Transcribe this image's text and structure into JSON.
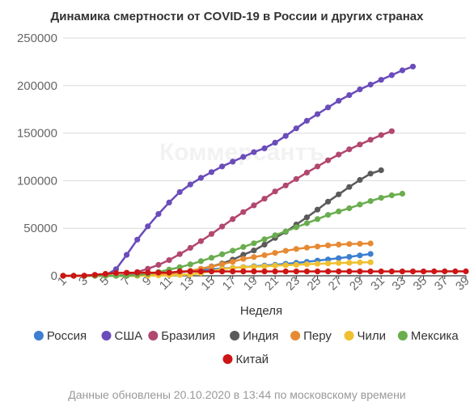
{
  "chart_data": {
    "type": "line",
    "title": "Динамика смертности от COVID-19 в России и других странах",
    "xlabel": "Неделя",
    "ylabel": "",
    "x_tick_labels": [
      "1",
      "3",
      "5",
      "7",
      "9",
      "11",
      "13",
      "15",
      "17",
      "19",
      "21",
      "23",
      "25",
      "27",
      "29",
      "31",
      "33",
      "35",
      "37",
      "39"
    ],
    "y_tick_labels": [
      "0",
      "50000",
      "100000",
      "150000",
      "200000",
      "250000"
    ],
    "xlim": [
      1,
      39
    ],
    "ylim": [
      0,
      250000
    ],
    "grid": true,
    "legend_position": "bottom",
    "watermark": "Коммерсантъ",
    "series": [
      {
        "name": "Россия",
        "color": "#3d7fd0",
        "x_start": 1,
        "values": [
          0,
          0,
          0,
          0,
          10,
          100,
          700,
          1400,
          2000,
          2600,
          3300,
          4100,
          5000,
          5900,
          6800,
          7600,
          8400,
          9200,
          10000,
          10800,
          11600,
          12600,
          13600,
          14700,
          16000,
          17200,
          18500,
          19900,
          21400,
          23000
        ]
      },
      {
        "name": "США",
        "color": "#6a4cba",
        "x_start": 1,
        "values": [
          0,
          0,
          0,
          0,
          600,
          7000,
          22000,
          38000,
          52000,
          65000,
          77000,
          88000,
          96000,
          103000,
          109000,
          115000,
          120000,
          125000,
          130000,
          134000,
          140000,
          147000,
          155000,
          163000,
          170000,
          177000,
          184000,
          190000,
          196000,
          201000,
          206000,
          211000,
          216000,
          220000
        ]
      },
      {
        "name": "Бразилия",
        "color": "#b2476f",
        "x_start": 1,
        "values": [
          0,
          0,
          0,
          0,
          0,
          100,
          1000,
          4000,
          7400,
          11500,
          16500,
          22800,
          29300,
          36500,
          44000,
          51800,
          59600,
          67000,
          74100,
          81000,
          88700,
          95000,
          101800,
          108500,
          115000,
          121400,
          127500,
          133000,
          138000,
          143000,
          148000,
          152000
        ]
      },
      {
        "name": "Индия",
        "color": "#5a5a5a",
        "x_start": 1,
        "values": [
          0,
          0,
          0,
          0,
          0,
          0,
          10,
          100,
          500,
          1200,
          2300,
          3500,
          5100,
          7200,
          9900,
          12900,
          16900,
          22100,
          26600,
          32800,
          39800,
          46200,
          53900,
          61500,
          69600,
          78000,
          85600,
          93400,
          100800,
          107400,
          111000
        ]
      },
      {
        "name": "Перу",
        "color": "#e68a33",
        "x_start": 1,
        "values": [
          0,
          0,
          0,
          0,
          0,
          0,
          30,
          200,
          600,
          1300,
          2400,
          3800,
          5300,
          7400,
          9600,
          12200,
          14700,
          17800,
          19700,
          21700,
          24100,
          26300,
          28200,
          29600,
          30800,
          32000,
          32800,
          33400,
          33700,
          34000
        ]
      },
      {
        "name": "Чили",
        "color": "#f0c030",
        "x_start": 1,
        "values": [
          0,
          0,
          0,
          0,
          0,
          0,
          10,
          80,
          200,
          400,
          600,
          900,
          1400,
          2900,
          5000,
          6900,
          8300,
          9000,
          9500,
          10000,
          10700,
          11100,
          11600,
          12200,
          12600,
          13000,
          13400,
          13700,
          14000,
          14200
        ]
      },
      {
        "name": "Мексика",
        "color": "#6aad4f",
        "x_start": 1,
        "values": [
          0,
          0,
          0,
          0,
          0,
          0,
          100,
          800,
          2000,
          4000,
          6500,
          9000,
          12000,
          15400,
          19000,
          22600,
          26400,
          30300,
          34200,
          38400,
          42600,
          46700,
          51000,
          55300,
          59600,
          64000,
          67700,
          71000,
          74900,
          78600,
          82000,
          84600,
          86300
        ]
      },
      {
        "name": "Китай",
        "color": "#cc1515",
        "x_start": 1,
        "values": [
          0,
          0,
          200,
          1000,
          2000,
          3000,
          3200,
          3300,
          3300,
          3300,
          3300,
          4600,
          4600,
          4600,
          4600,
          4600,
          4600,
          4600,
          4600,
          4600,
          4600,
          4600,
          4600,
          4600,
          4600,
          4600,
          4600,
          4600,
          4600,
          4600,
          4600,
          4600,
          4600,
          4600,
          4600,
          4700,
          4700,
          4700,
          4700
        ]
      }
    ]
  },
  "footer_note": "Данные обновлены 20.10.2020 в 13:44 по московскому времени"
}
